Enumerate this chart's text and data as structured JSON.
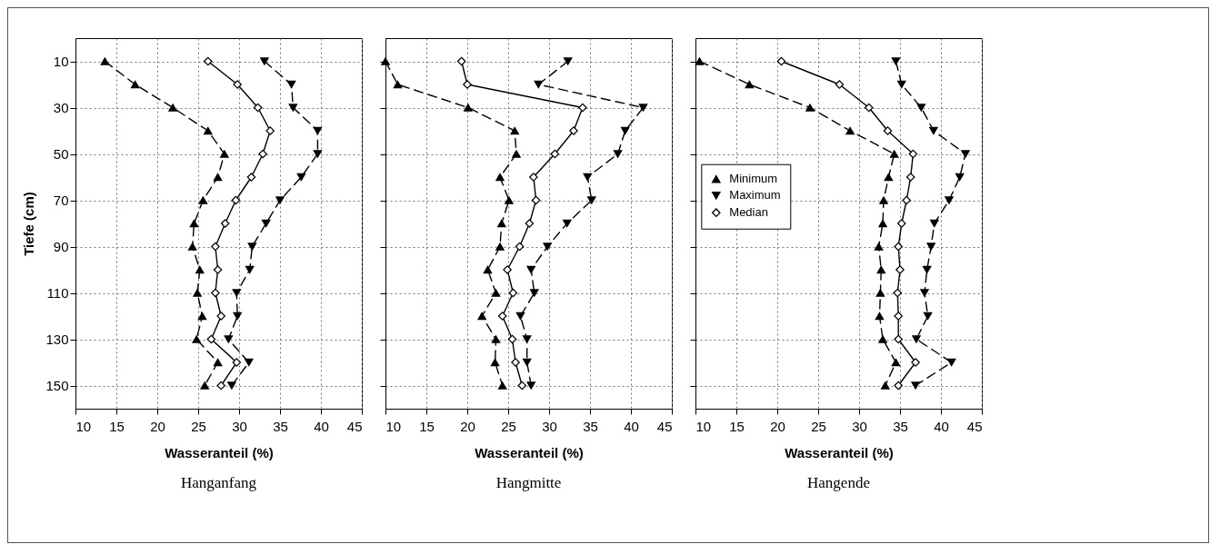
{
  "chart_data": [
    {
      "type": "line",
      "title": "Hanganfang",
      "xlabel": "Wasseranteil (%)",
      "ylabel": "Tiefe (cm)",
      "xlim": [
        10,
        45
      ],
      "xticks": [
        10,
        15,
        20,
        25,
        30,
        35,
        40,
        45
      ],
      "ylim": [
        160,
        0
      ],
      "yticks": [
        10,
        30,
        50,
        70,
        90,
        110,
        130,
        150
      ],
      "grid": true,
      "series": [
        {
          "color": "#000000",
          "marker": "triangle",
          "line_style": "dashed",
          "x": [
            13.6,
            17.3,
            21.9,
            26.2,
            28.2,
            27.4,
            25.6,
            24.5,
            24.3,
            25.2,
            24.9,
            25.5,
            24.8,
            27.4,
            25.8
          ],
          "values": [
            10,
            20,
            30,
            40,
            50,
            60,
            70,
            80,
            90,
            100,
            110,
            120,
            130,
            140,
            150
          ]
        },
        {
          "color": "#000000",
          "marker": "triangle-down",
          "line_style": "dashed",
          "x": [
            33.1,
            36.4,
            36.6,
            39.6,
            39.6,
            37.6,
            35.0,
            33.3,
            31.6,
            31.3,
            29.7,
            29.8,
            28.7,
            31.2,
            29.1
          ],
          "values": [
            10,
            20,
            30,
            40,
            50,
            60,
            70,
            80,
            90,
            100,
            110,
            120,
            130,
            140,
            150
          ]
        },
        {
          "color": "#000000",
          "marker": "diamond",
          "line_style": "solid",
          "x": [
            26.2,
            29.8,
            32.3,
            33.8,
            32.9,
            31.5,
            29.6,
            28.3,
            27.1,
            27.4,
            27.1,
            27.8,
            26.6,
            29.7,
            27.8
          ],
          "values": [
            10,
            20,
            30,
            40,
            50,
            60,
            70,
            80,
            90,
            100,
            110,
            120,
            130,
            140,
            150
          ]
        }
      ]
    },
    {
      "type": "line",
      "title": "Hangmitte",
      "xlabel": "Wasseranteil (%)",
      "xlim": [
        10,
        45
      ],
      "xticks": [
        10,
        15,
        20,
        25,
        30,
        35,
        40,
        45
      ],
      "ylim": [
        160,
        0
      ],
      "yticks": [
        10,
        30,
        50,
        70,
        90,
        110,
        130,
        150
      ],
      "grid": true,
      "tick_labels": "x",
      "series": [
        {
          "color": "#000000",
          "marker": "triangle",
          "line_style": "dashed",
          "x": [
            10.0,
            11.5,
            20.1,
            25.8,
            26.0,
            24.0,
            25.1,
            24.2,
            24.0,
            22.5,
            23.5,
            21.8,
            23.5,
            23.4,
            24.3
          ],
          "values": [
            10,
            20,
            30,
            40,
            50,
            60,
            70,
            80,
            90,
            100,
            110,
            120,
            130,
            140,
            150
          ]
        },
        {
          "color": "#000000",
          "marker": "triangle-down",
          "line_style": "dashed",
          "x": [
            32.3,
            28.7,
            41.5,
            39.3,
            38.4,
            34.7,
            35.2,
            32.2,
            29.8,
            27.8,
            28.2,
            26.5,
            27.3,
            27.3,
            27.8
          ],
          "values": [
            10,
            20,
            30,
            40,
            50,
            60,
            70,
            80,
            90,
            100,
            110,
            120,
            130,
            140,
            150
          ]
        },
        {
          "color": "#000000",
          "marker": "diamond",
          "line_style": "solid",
          "x": [
            19.3,
            20.0,
            34.1,
            33.0,
            30.7,
            28.1,
            28.4,
            27.6,
            26.4,
            24.9,
            25.6,
            24.3,
            25.5,
            25.9,
            26.7
          ],
          "values": [
            10,
            20,
            30,
            40,
            50,
            60,
            70,
            80,
            90,
            100,
            110,
            120,
            130,
            140,
            150
          ]
        }
      ]
    },
    {
      "type": "line",
      "title": "Hangende",
      "xlabel": "Wasseranteil (%)",
      "xlim": [
        10,
        45
      ],
      "xticks": [
        10,
        15,
        20,
        25,
        30,
        35,
        40,
        45
      ],
      "ylim": [
        160,
        0
      ],
      "yticks": [
        10,
        30,
        50,
        70,
        90,
        110,
        130,
        150
      ],
      "grid": true,
      "tick_labels": "x",
      "legend": "left",
      "series": [
        {
          "name": "Minimum",
          "color": "#000000",
          "marker": "triangle",
          "line_style": "dashed",
          "x": [
            10.5,
            16.6,
            24.0,
            28.9,
            34.3,
            33.6,
            33.0,
            32.9,
            32.4,
            32.7,
            32.6,
            32.5,
            32.9,
            34.5,
            33.2
          ],
          "values": [
            10,
            20,
            30,
            40,
            50,
            60,
            70,
            80,
            90,
            100,
            110,
            120,
            130,
            140,
            150
          ]
        },
        {
          "name": "Maximum",
          "color": "#000000",
          "marker": "triangle-down",
          "line_style": "dashed",
          "x": [
            34.5,
            35.2,
            37.6,
            39.1,
            43.0,
            42.3,
            41.0,
            39.2,
            38.8,
            38.3,
            38.0,
            38.4,
            37.0,
            41.3,
            36.9
          ],
          "values": [
            10,
            20,
            30,
            40,
            50,
            60,
            70,
            80,
            90,
            100,
            110,
            120,
            130,
            140,
            150
          ]
        },
        {
          "name": "Median",
          "color": "#000000",
          "marker": "diamond",
          "line_style": "solid",
          "x": [
            20.5,
            27.6,
            31.2,
            33.5,
            36.6,
            36.3,
            35.8,
            35.2,
            34.8,
            35.0,
            34.7,
            34.8,
            34.8,
            36.9,
            34.8
          ],
          "values": [
            10,
            20,
            30,
            40,
            50,
            60,
            70,
            80,
            90,
            100,
            110,
            120,
            130,
            140,
            150
          ]
        }
      ]
    }
  ]
}
